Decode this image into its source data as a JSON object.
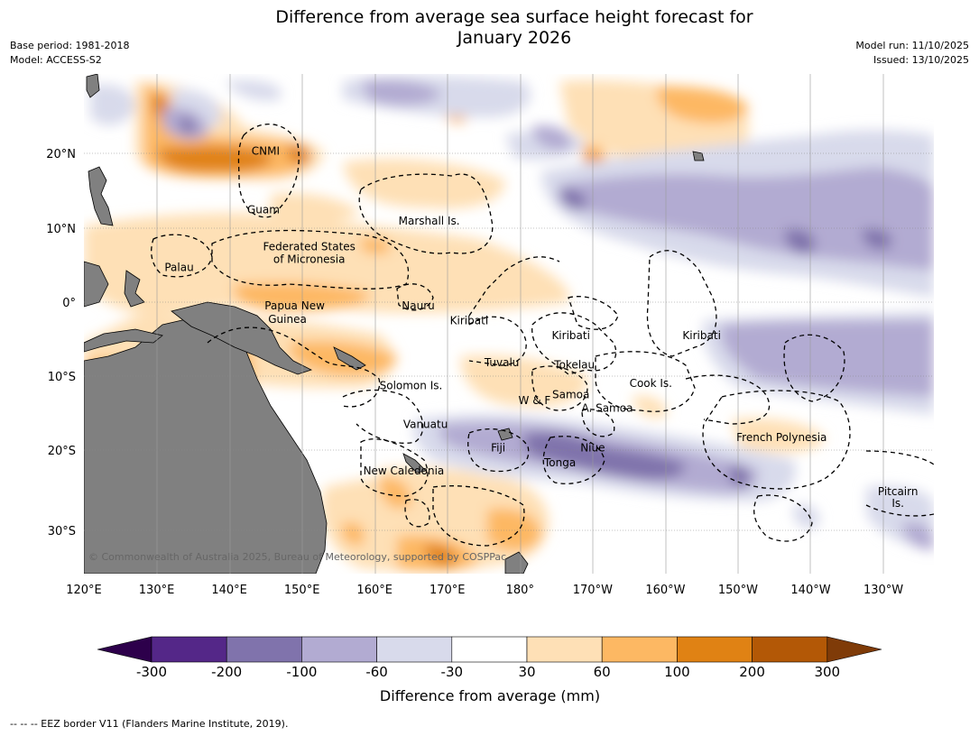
{
  "title_line1": "Difference from average sea surface height forecast for",
  "title_line2": "January 2026",
  "base_period": "Base period: 1981-2018",
  "model": "Model: ACCESS-S2",
  "model_run": "Model run: 11/10/2025",
  "issued": "Issued: 13/10/2025",
  "colorbar": {
    "title": "Difference from average (mm)",
    "labels": [
      "-300",
      "-200",
      "-100",
      "-60",
      "-30",
      "30",
      "60",
      "100",
      "200",
      "300"
    ],
    "colors": {
      "below_min": "#2d004b",
      "bins": [
        "#542788",
        "#8073ac",
        "#b2abd2",
        "#d8daeb",
        "#ffffff",
        "#fee0b6",
        "#fdb863",
        "#e08214",
        "#b35806"
      ],
      "above_max": "#7f3b08"
    }
  },
  "axes": {
    "lon_labels": [
      "120°E",
      "130°E",
      "140°E",
      "150°E",
      "160°E",
      "170°E",
      "180°",
      "170°W",
      "160°W",
      "150°W",
      "140°W",
      "130°W"
    ],
    "lat_labels": [
      "20°N",
      "10°N",
      "0°",
      "10°S",
      "20°S",
      "30°S"
    ]
  },
  "places": [
    {
      "name": "CNMI",
      "lon": 145,
      "lat": 20.4
    },
    {
      "name": "Guam",
      "lon": 144.7,
      "lat": 12.5
    },
    {
      "name": "Marshall Is.",
      "lon": 167.5,
      "lat": 11
    },
    {
      "name": "Federated States",
      "lon": 151,
      "lat": 7.5
    },
    {
      "name": "of Micronesia",
      "lon": 151,
      "lat": 5.8
    },
    {
      "name": "Palau",
      "lon": 133.1,
      "lat": 4.7
    },
    {
      "name": "Papua New",
      "lon": 149,
      "lat": -0.5
    },
    {
      "name": "Guinea",
      "lon": 148,
      "lat": -2.3
    },
    {
      "name": "Nauru",
      "lon": 166,
      "lat": -0.5
    },
    {
      "name": "Kiribati",
      "lon": 173,
      "lat": -2.5
    },
    {
      "name": "Kiribati",
      "lon": 187,
      "lat": -4.5
    },
    {
      "name": "Kiribati",
      "lon": 205,
      "lat": -4.5
    },
    {
      "name": "Tuvalu",
      "lon": 177.5,
      "lat": -8.2
    },
    {
      "name": "Tokelau",
      "lon": 187.5,
      "lat": -8.5
    },
    {
      "name": "Cook Is.",
      "lon": 198,
      "lat": -11
    },
    {
      "name": "Solomon Is.",
      "lon": 165,
      "lat": -11.3
    },
    {
      "name": "Samoa",
      "lon": 187,
      "lat": -12.5
    },
    {
      "name": "W & F",
      "lon": 182,
      "lat": -13.3
    },
    {
      "name": "A. Samoa",
      "lon": 192,
      "lat": -14.3
    },
    {
      "name": "Vanuatu",
      "lon": 167,
      "lat": -16.5
    },
    {
      "name": "Fiji",
      "lon": 177,
      "lat": -19.7
    },
    {
      "name": "Niue",
      "lon": 190,
      "lat": -19.7
    },
    {
      "name": "Tonga",
      "lon": 185.5,
      "lat": -21.7
    },
    {
      "name": "French Polynesia",
      "lon": 216,
      "lat": -18.3
    },
    {
      "name": "New Caledonia",
      "lon": 164,
      "lat": -22.8
    },
    {
      "name": "Pitcairn",
      "lon": 232,
      "lat": -25.6
    },
    {
      "name": "Is.",
      "lon": 232,
      "lat": -27.2
    }
  ],
  "copyright": "© Commonwealth of Australia 2025, Bureau of Meteorology, supported by COSPPac",
  "footnote": "--  --  -- EEZ border V11 (Flanders Marine Institute, 2019)."
}
